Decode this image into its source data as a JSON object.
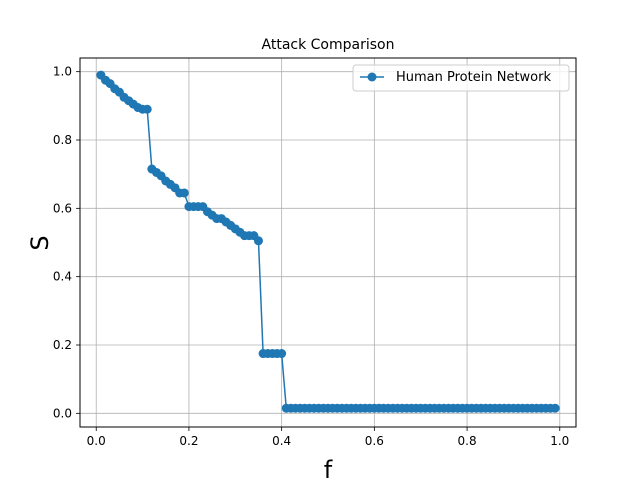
{
  "chart_data": {
    "type": "line",
    "title": "Attack Comparison",
    "xlabel": "f",
    "ylabel": "S",
    "xlim": [
      -0.035,
      1.035
    ],
    "ylim": [
      -0.04,
      1.04
    ],
    "xticks": [
      0.0,
      0.2,
      0.4,
      0.6,
      0.8,
      1.0
    ],
    "xtick_labels": [
      "0.0",
      "0.2",
      "0.4",
      "0.6",
      "0.8",
      "1.0"
    ],
    "yticks": [
      0.0,
      0.2,
      0.4,
      0.6,
      0.8,
      1.0
    ],
    "ytick_labels": [
      "0.0",
      "0.2",
      "0.4",
      "0.6",
      "0.8",
      "1.0"
    ],
    "grid": true,
    "legend_position": "upper right",
    "series": [
      {
        "name": "Human Protein Network",
        "color": "#1f77b4",
        "marker": "circle",
        "x": [
          0.01,
          0.02,
          0.03,
          0.04,
          0.05,
          0.06,
          0.07,
          0.08,
          0.09,
          0.1,
          0.11,
          0.12,
          0.13,
          0.14,
          0.15,
          0.16,
          0.17,
          0.18,
          0.19,
          0.2,
          0.21,
          0.22,
          0.23,
          0.24,
          0.25,
          0.26,
          0.27,
          0.28,
          0.29,
          0.3,
          0.31,
          0.32,
          0.33,
          0.34,
          0.35,
          0.36,
          0.37,
          0.38,
          0.39,
          0.4,
          0.41,
          0.42,
          0.43,
          0.44,
          0.45,
          0.46,
          0.47,
          0.48,
          0.49,
          0.5,
          0.51,
          0.52,
          0.53,
          0.54,
          0.55,
          0.56,
          0.57,
          0.58,
          0.59,
          0.6,
          0.61,
          0.62,
          0.63,
          0.64,
          0.65,
          0.66,
          0.67,
          0.68,
          0.69,
          0.7,
          0.71,
          0.72,
          0.73,
          0.74,
          0.75,
          0.76,
          0.77,
          0.78,
          0.79,
          0.8,
          0.81,
          0.82,
          0.83,
          0.84,
          0.85,
          0.86,
          0.87,
          0.88,
          0.89,
          0.9,
          0.91,
          0.92,
          0.93,
          0.94,
          0.95,
          0.96,
          0.97,
          0.98,
          0.99
        ],
        "y": [
          0.99,
          0.975,
          0.965,
          0.95,
          0.94,
          0.925,
          0.915,
          0.905,
          0.895,
          0.89,
          0.89,
          0.715,
          0.705,
          0.695,
          0.68,
          0.67,
          0.66,
          0.645,
          0.645,
          0.605,
          0.605,
          0.605,
          0.605,
          0.59,
          0.58,
          0.57,
          0.57,
          0.56,
          0.55,
          0.54,
          0.53,
          0.52,
          0.52,
          0.52,
          0.505,
          0.175,
          0.175,
          0.175,
          0.175,
          0.175,
          0.015,
          0.015,
          0.015,
          0.015,
          0.015,
          0.015,
          0.015,
          0.015,
          0.015,
          0.015,
          0.015,
          0.015,
          0.015,
          0.015,
          0.015,
          0.015,
          0.015,
          0.015,
          0.015,
          0.015,
          0.015,
          0.015,
          0.015,
          0.015,
          0.015,
          0.015,
          0.015,
          0.015,
          0.015,
          0.015,
          0.015,
          0.015,
          0.015,
          0.015,
          0.015,
          0.015,
          0.015,
          0.015,
          0.015,
          0.015,
          0.015,
          0.015,
          0.015,
          0.015,
          0.015,
          0.015,
          0.015,
          0.015,
          0.015,
          0.015,
          0.015,
          0.015,
          0.015,
          0.015,
          0.015,
          0.015,
          0.015,
          0.015,
          0.015
        ]
      }
    ]
  }
}
